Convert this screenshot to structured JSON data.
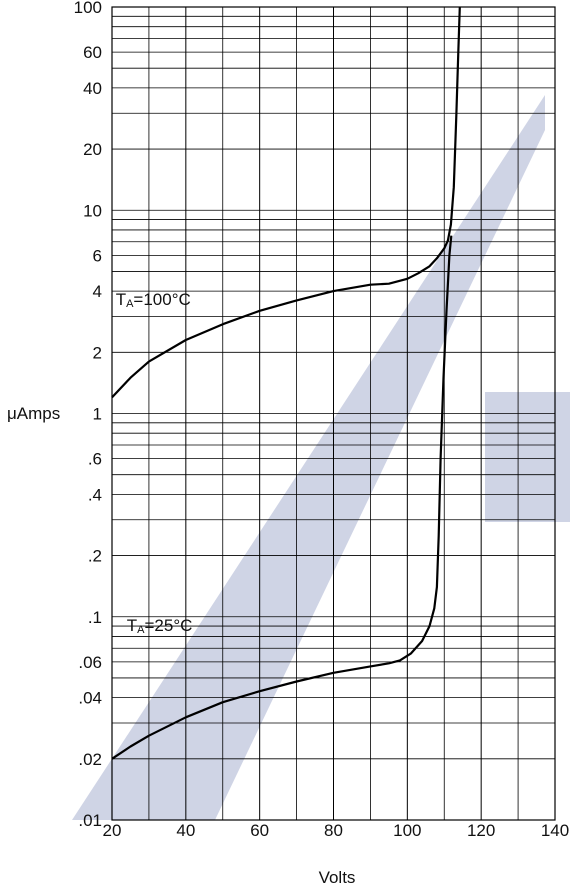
{
  "chart_data": {
    "type": "line",
    "title": "",
    "xlabel": "Volts",
    "ylabel": "μAmps",
    "x_scale": "linear",
    "y_scale": "log",
    "xlim": [
      20,
      140
    ],
    "ylim": [
      0.01,
      100
    ],
    "x_ticks": [
      20,
      40,
      60,
      80,
      100,
      120,
      140
    ],
    "x_tick_labels": [
      "20",
      "40",
      "60",
      "80",
      "100",
      "120",
      "140"
    ],
    "y_ticks": [
      0.01,
      0.02,
      0.04,
      0.06,
      0.1,
      0.2,
      0.4,
      0.6,
      1,
      2,
      4,
      6,
      10,
      20,
      40,
      60,
      100
    ],
    "y_tick_labels": [
      ".01",
      ".02",
      ".04",
      ".06",
      ".1",
      ".2",
      ".4",
      ".6",
      "1",
      "2",
      "4",
      "6",
      "10",
      "20",
      "40",
      "60",
      "100"
    ],
    "grid": true,
    "line_color": "#000000",
    "watermark_color": "#c7cde0",
    "series": [
      {
        "annotation": {
          "main": "T",
          "sub": "A",
          "rest": "=100°C",
          "x": 21,
          "y": 4
        },
        "points": [
          [
            20,
            1.2
          ],
          [
            25,
            1.5
          ],
          [
            30,
            1.8
          ],
          [
            40,
            2.3
          ],
          [
            50,
            2.75
          ],
          [
            60,
            3.2
          ],
          [
            70,
            3.6
          ],
          [
            80,
            4.0
          ],
          [
            90,
            4.3
          ],
          [
            95,
            4.35
          ],
          [
            100,
            4.6
          ],
          [
            103,
            4.9
          ],
          [
            106,
            5.3
          ],
          [
            108,
            5.8
          ],
          [
            110,
            6.5
          ],
          [
            111,
            7.1
          ],
          [
            111.8,
            8.5
          ],
          [
            112.6,
            13
          ],
          [
            113.3,
            30
          ],
          [
            113.8,
            60
          ],
          [
            114.2,
            100
          ]
        ]
      },
      {
        "annotation": {
          "main": "T",
          "sub": "A",
          "rest": "=25°C",
          "x": 24,
          "y": 0.1
        },
        "points": [
          [
            20,
            0.02
          ],
          [
            25,
            0.023
          ],
          [
            30,
            0.026
          ],
          [
            40,
            0.032
          ],
          [
            50,
            0.038
          ],
          [
            60,
            0.043
          ],
          [
            70,
            0.048
          ],
          [
            80,
            0.053
          ],
          [
            90,
            0.057
          ],
          [
            95,
            0.059
          ],
          [
            98,
            0.061
          ],
          [
            101,
            0.066
          ],
          [
            104,
            0.076
          ],
          [
            106,
            0.09
          ],
          [
            107.3,
            0.11
          ],
          [
            108,
            0.14
          ],
          [
            108.5,
            0.25
          ],
          [
            109,
            0.6
          ],
          [
            109.8,
            1.5
          ],
          [
            110.6,
            3.2
          ],
          [
            111.4,
            6
          ],
          [
            111.9,
            7.5
          ]
        ]
      }
    ]
  }
}
